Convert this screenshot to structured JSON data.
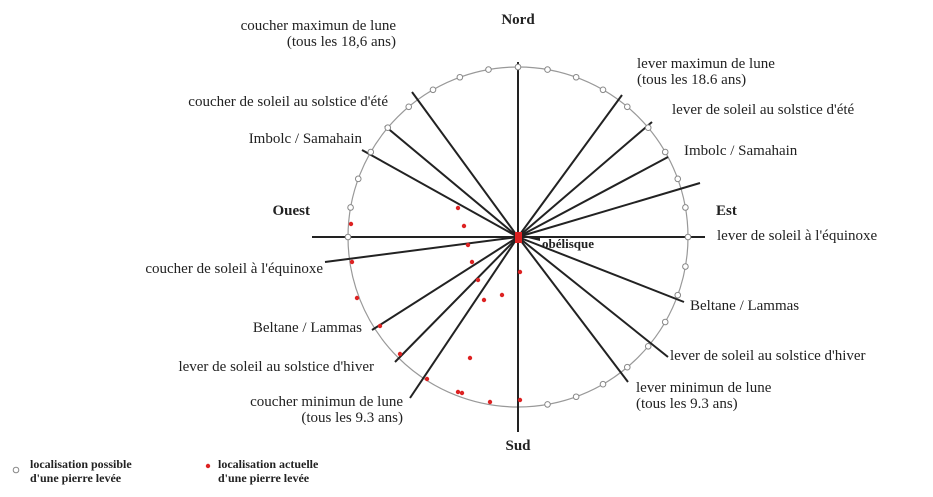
{
  "compass": {
    "north": "Nord",
    "south": "Sud",
    "west": "Ouest",
    "east": "Est"
  },
  "center_label": "obélisque",
  "right_labels": [
    [
      "lever maximun de lune",
      "(tous les 18.6 ans)"
    ],
    [
      "lever de soleil au solstice d'été"
    ],
    [
      "Imbolc / Samahain"
    ],
    [
      "lever de soleil à l'équinoxe"
    ],
    [
      "Beltane / Lammas"
    ],
    [
      "lever de soleil au solstice d'hiver"
    ],
    [
      "lever minimun de lune",
      "(tous les 9.3 ans)"
    ]
  ],
  "left_labels": [
    [
      "coucher maximun de lune",
      "(tous les 18,6 ans)"
    ],
    [
      "coucher de soleil au solstice d'été"
    ],
    [
      "Imbolc / Samahain"
    ],
    [
      "coucher de soleil à l'équinoxe"
    ],
    [
      "Beltane / Lammas"
    ],
    [
      "lever de soleil au solstice d'hiver"
    ],
    [
      "coucher minimun de lune",
      "(tous les 9.3 ans)"
    ]
  ],
  "legend": [
    [
      "localisation possible",
      "d'une pierre levée"
    ],
    [
      "localisation actuelle",
      "d'une pierre levée"
    ]
  ]
}
